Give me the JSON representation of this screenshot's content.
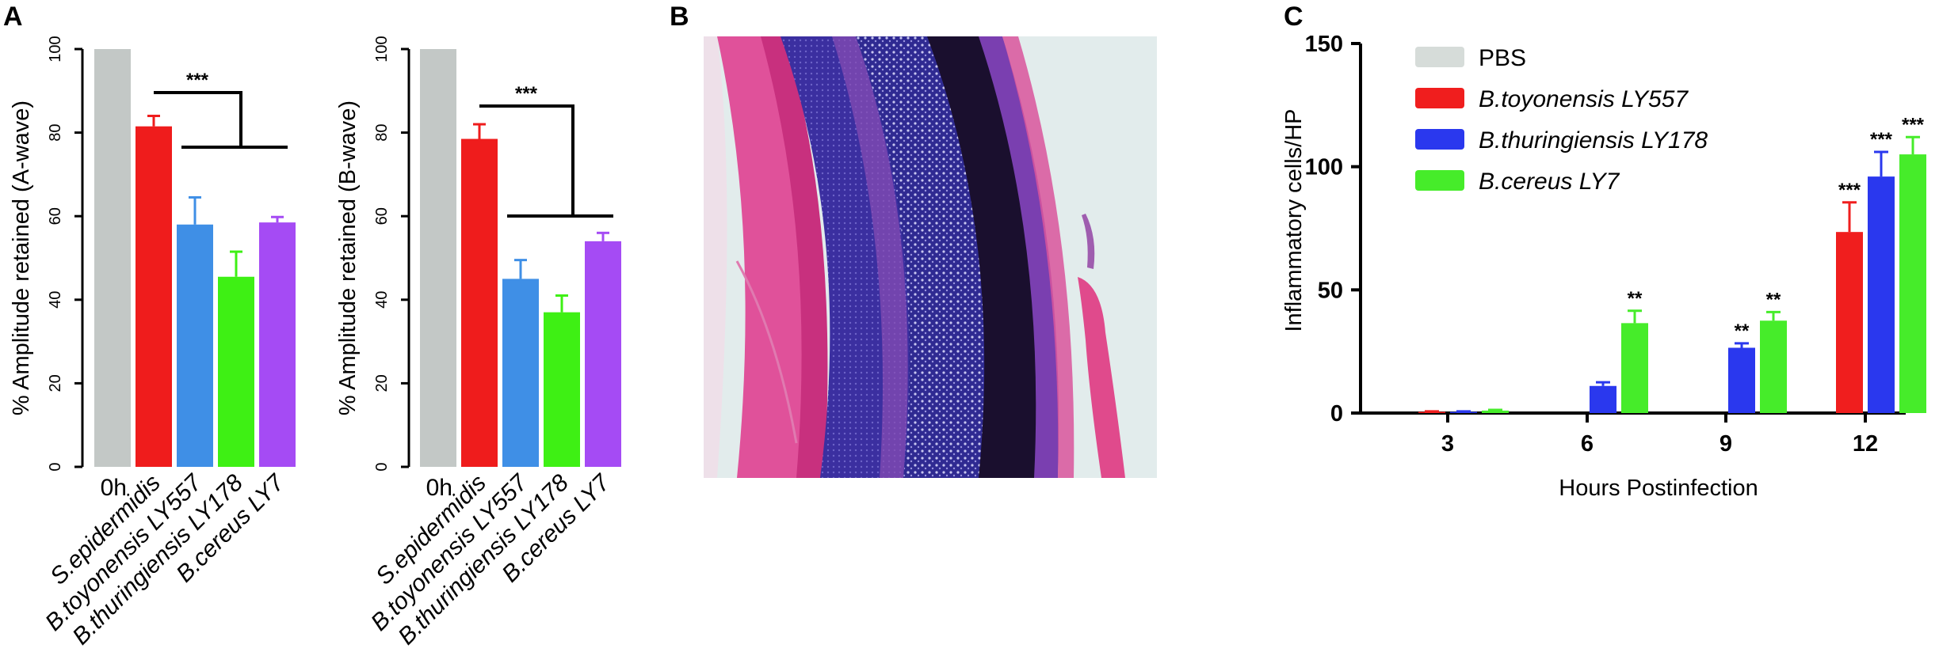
{
  "panels": {
    "A": "A",
    "B": "B",
    "C": "C"
  },
  "histology_image": {
    "description_icon": "retina-histology-image",
    "colors": {
      "background": "#e2ecec",
      "pink": "#e0519a",
      "dark_pink": "#c8307e",
      "blue": "#3c2e9a",
      "dark": "#1a0f2e",
      "purple": "#7a3fb0"
    }
  },
  "chart_data": [
    {
      "id": "a-wave",
      "type": "bar",
      "title": "",
      "ylabel": "% Amplitude retained (A-wave)",
      "xlabel": "",
      "ylim": [
        0,
        100
      ],
      "yticks": [
        0,
        20,
        40,
        60,
        80,
        100
      ],
      "categories": [
        "0h",
        "S.epidermidis",
        "B.toyonensis LY557",
        "B.thuringiensis LY178",
        "B.cereus LY7"
      ],
      "category_italic": [
        false,
        true,
        true,
        true,
        true
      ],
      "values": [
        100,
        81.5,
        58,
        45.5,
        58.5
      ],
      "errors": [
        0,
        2.5,
        6.5,
        6,
        1.3
      ],
      "colors": [
        "#c3c8c6",
        "#ef1c1c",
        "#3f8fe6",
        "#3ef014",
        "#a54bf4"
      ],
      "significance": {
        "label": "***",
        "from_category": 1,
        "to_categories": [
          2,
          4
        ]
      },
      "grid": false
    },
    {
      "id": "b-wave",
      "type": "bar",
      "title": "",
      "ylabel": "% Amplitude retained (B-wave)",
      "xlabel": "",
      "ylim": [
        0,
        100
      ],
      "yticks": [
        0,
        20,
        40,
        60,
        80,
        100
      ],
      "categories": [
        "0h",
        "S.epidermidis",
        "B.toyonensis LY557",
        "B.thuringiensis LY178",
        "B.cereus LY7"
      ],
      "category_italic": [
        false,
        true,
        true,
        true,
        true
      ],
      "values": [
        100,
        78.5,
        45,
        37,
        54
      ],
      "errors": [
        0,
        3.5,
        4.5,
        4,
        2
      ],
      "colors": [
        "#c3c8c6",
        "#ef1c1c",
        "#3f8fe6",
        "#3ef014",
        "#a54bf4"
      ],
      "significance": {
        "label": "***",
        "from_category": 1,
        "to_categories": [
          2,
          4
        ]
      },
      "grid": false
    },
    {
      "id": "inflammatory",
      "type": "bar",
      "title": "",
      "ylabel": "Inflammatory cells/HP",
      "xlabel": "Hours Postinfection",
      "ylim": [
        0,
        150
      ],
      "yticks": [
        0,
        50,
        100,
        150
      ],
      "categories": [
        "3",
        "6",
        "9",
        "12"
      ],
      "series": [
        {
          "name": "PBS",
          "color": "#d6dcd9",
          "values": [
            0,
            0,
            0,
            0
          ],
          "errors": [
            0,
            0,
            0,
            0
          ],
          "sig": [
            "",
            "",
            "",
            ""
          ]
        },
        {
          "name": "B.toyonensis LY557",
          "color": "#f01e1e",
          "values": [
            0.5,
            0,
            0,
            73.5
          ],
          "errors": [
            0.2,
            0,
            0,
            12
          ],
          "sig": [
            "",
            "",
            "",
            "***"
          ]
        },
        {
          "name": "B.thuringiensis LY178",
          "color": "#2a38ee",
          "values": [
            0.5,
            11,
            26.5,
            96
          ],
          "errors": [
            0.2,
            1.5,
            1.8,
            10
          ],
          "sig": [
            "",
            "",
            "**",
            "***"
          ]
        },
        {
          "name": "B.cereus LY7",
          "color": "#46ec2a",
          "values": [
            1,
            36.5,
            37.5,
            105
          ],
          "errors": [
            0.3,
            5,
            3.5,
            7
          ],
          "sig": [
            "",
            "**",
            "**",
            "***"
          ]
        }
      ],
      "legend_italic": [
        false,
        true,
        true,
        true
      ],
      "legend_position": "top-left",
      "grid": false
    }
  ]
}
